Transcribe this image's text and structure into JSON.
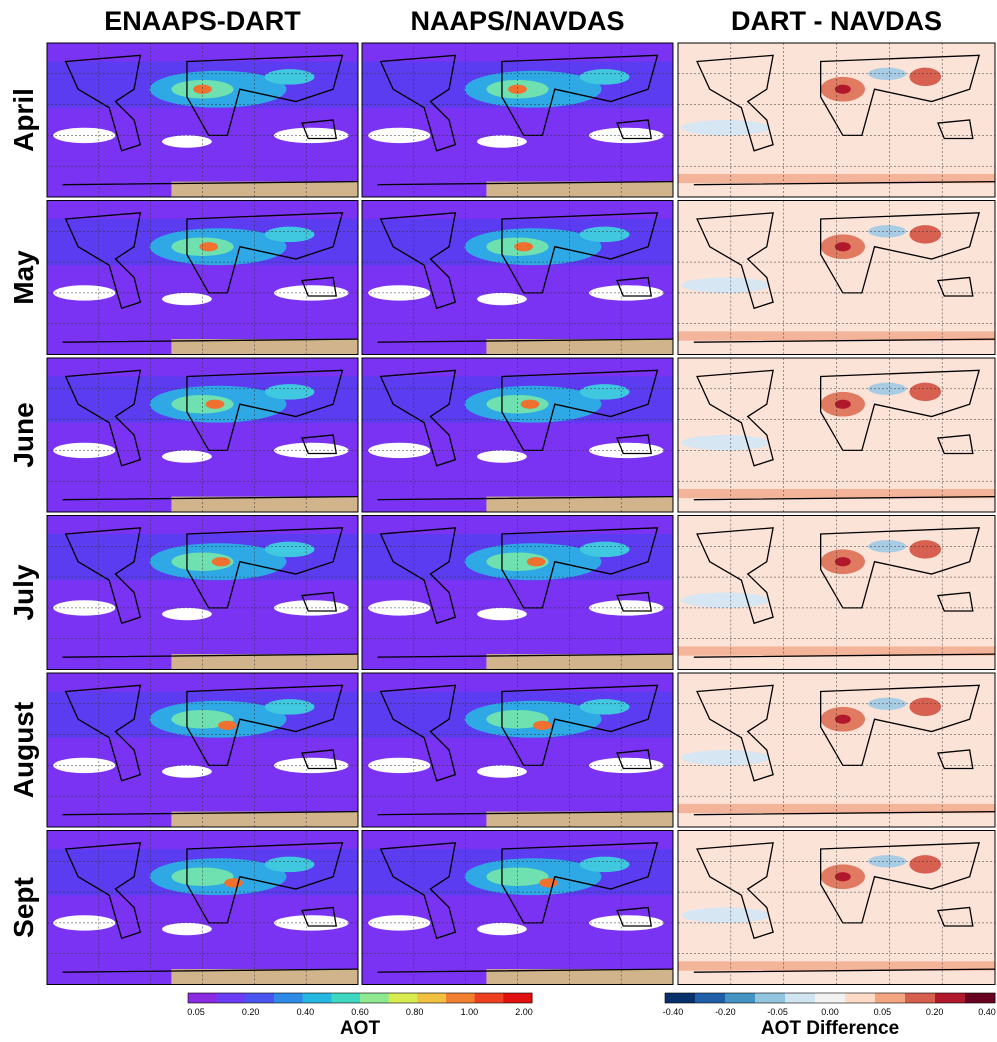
{
  "columns": [
    "ENAAPS-DART",
    "NAAPS/NAVDAS",
    "DART - NAVDAS"
  ],
  "rows": [
    "April",
    "May",
    "June",
    "July",
    "August",
    "Sept"
  ],
  "colorbars": [
    {
      "title": "AOT",
      "ticks": [
        "0.05",
        "0.20",
        "0.40",
        "0.60",
        "0.80",
        "1.00",
        "2.00"
      ]
    },
    {
      "title": "AOT Difference",
      "ticks": [
        "-0.40",
        "-0.20",
        "-0.05",
        "0.00",
        "0.05",
        "0.20",
        "0.40"
      ]
    }
  ]
}
